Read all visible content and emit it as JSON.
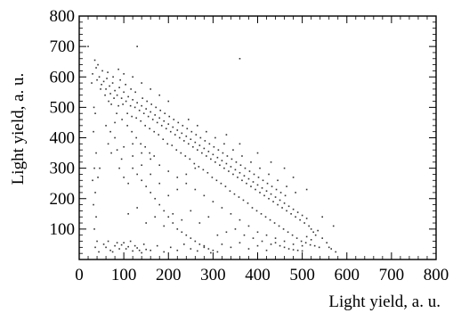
{
  "chart_data": {
    "type": "scatter",
    "title": "",
    "xlabel": "Light yield, a. u.",
    "ylabel": "Light yield, a. u.",
    "xlim": [
      0,
      800
    ],
    "ylim": [
      0,
      800
    ],
    "xticks": [
      0,
      100,
      200,
      300,
      400,
      500,
      600,
      700,
      800
    ],
    "yticks": [
      100,
      200,
      300,
      400,
      500,
      600,
      700,
      800
    ],
    "x_minor_step": 20,
    "y_minor_step": 20,
    "grid": false,
    "marker_color": "#333333",
    "points": [
      [
        40,
        590
      ],
      [
        45,
        600
      ],
      [
        50,
        575
      ],
      [
        55,
        585
      ],
      [
        60,
        560
      ],
      [
        62,
        595
      ],
      [
        68,
        570
      ],
      [
        70,
        545
      ],
      [
        75,
        580
      ],
      [
        80,
        555
      ],
      [
        85,
        540
      ],
      [
        90,
        565
      ],
      [
        95,
        530
      ],
      [
        100,
        550
      ],
      [
        105,
        520
      ],
      [
        110,
        535
      ],
      [
        115,
        505
      ],
      [
        120,
        525
      ],
      [
        125,
        500
      ],
      [
        130,
        515
      ],
      [
        135,
        490
      ],
      [
        140,
        505
      ],
      [
        145,
        480
      ],
      [
        150,
        495
      ],
      [
        155,
        470
      ],
      [
        160,
        485
      ],
      [
        165,
        460
      ],
      [
        170,
        475
      ],
      [
        175,
        450
      ],
      [
        180,
        465
      ],
      [
        185,
        440
      ],
      [
        190,
        455
      ],
      [
        195,
        430
      ],
      [
        200,
        445
      ],
      [
        205,
        420
      ],
      [
        210,
        435
      ],
      [
        215,
        410
      ],
      [
        220,
        425
      ],
      [
        225,
        400
      ],
      [
        230,
        415
      ],
      [
        235,
        390
      ],
      [
        240,
        405
      ],
      [
        245,
        380
      ],
      [
        250,
        395
      ],
      [
        255,
        370
      ],
      [
        260,
        385
      ],
      [
        265,
        360
      ],
      [
        270,
        375
      ],
      [
        275,
        350
      ],
      [
        280,
        365
      ],
      [
        285,
        340
      ],
      [
        290,
        355
      ],
      [
        295,
        330
      ],
      [
        300,
        345
      ],
      [
        305,
        320
      ],
      [
        310,
        335
      ],
      [
        315,
        310
      ],
      [
        320,
        325
      ],
      [
        325,
        300
      ],
      [
        330,
        315
      ],
      [
        335,
        290
      ],
      [
        340,
        305
      ],
      [
        345,
        280
      ],
      [
        350,
        295
      ],
      [
        355,
        270
      ],
      [
        360,
        285
      ],
      [
        365,
        260
      ],
      [
        370,
        275
      ],
      [
        375,
        250
      ],
      [
        380,
        265
      ],
      [
        385,
        240
      ],
      [
        390,
        255
      ],
      [
        395,
        230
      ],
      [
        400,
        245
      ],
      [
        405,
        220
      ],
      [
        410,
        235
      ],
      [
        415,
        210
      ],
      [
        420,
        225
      ],
      [
        425,
        200
      ],
      [
        430,
        215
      ],
      [
        435,
        190
      ],
      [
        440,
        205
      ],
      [
        445,
        180
      ],
      [
        450,
        195
      ],
      [
        455,
        170
      ],
      [
        460,
        185
      ],
      [
        465,
        160
      ],
      [
        470,
        175
      ],
      [
        475,
        150
      ],
      [
        480,
        165
      ],
      [
        485,
        140
      ],
      [
        490,
        155
      ],
      [
        495,
        130
      ],
      [
        500,
        145
      ],
      [
        505,
        120
      ],
      [
        510,
        135
      ],
      [
        515,
        110
      ],
      [
        520,
        100
      ],
      [
        525,
        90
      ],
      [
        530,
        80
      ],
      [
        48,
        560
      ],
      [
        58,
        540
      ],
      [
        66,
        520
      ],
      [
        78,
        530
      ],
      [
        88,
        505
      ],
      [
        98,
        510
      ],
      [
        108,
        480
      ],
      [
        118,
        470
      ],
      [
        128,
        465
      ],
      [
        138,
        455
      ],
      [
        148,
        440
      ],
      [
        158,
        430
      ],
      [
        168,
        420
      ],
      [
        178,
        410
      ],
      [
        188,
        395
      ],
      [
        198,
        380
      ],
      [
        208,
        375
      ],
      [
        218,
        360
      ],
      [
        228,
        350
      ],
      [
        238,
        340
      ],
      [
        248,
        330
      ],
      [
        258,
        315
      ],
      [
        268,
        305
      ],
      [
        278,
        295
      ],
      [
        288,
        285
      ],
      [
        298,
        270
      ],
      [
        308,
        260
      ],
      [
        318,
        250
      ],
      [
        328,
        240
      ],
      [
        338,
        225
      ],
      [
        348,
        215
      ],
      [
        358,
        205
      ],
      [
        368,
        195
      ],
      [
        378,
        185
      ],
      [
        388,
        170
      ],
      [
        398,
        160
      ],
      [
        408,
        150
      ],
      [
        418,
        140
      ],
      [
        428,
        130
      ],
      [
        438,
        120
      ],
      [
        448,
        110
      ],
      [
        458,
        100
      ],
      [
        468,
        90
      ],
      [
        478,
        80
      ],
      [
        488,
        70
      ],
      [
        498,
        60
      ],
      [
        508,
        55
      ],
      [
        518,
        48
      ],
      [
        528,
        45
      ],
      [
        538,
        40
      ],
      [
        52,
        620
      ],
      [
        64,
        615
      ],
      [
        76,
        600
      ],
      [
        92,
        590
      ],
      [
        104,
        575
      ],
      [
        116,
        560
      ],
      [
        126,
        550
      ],
      [
        142,
        530
      ],
      [
        152,
        520
      ],
      [
        162,
        510
      ],
      [
        172,
        500
      ],
      [
        182,
        490
      ],
      [
        192,
        480
      ],
      [
        202,
        470
      ],
      [
        212,
        460
      ],
      [
        222,
        450
      ],
      [
        232,
        440
      ],
      [
        242,
        430
      ],
      [
        252,
        420
      ],
      [
        262,
        410
      ],
      [
        272,
        400
      ],
      [
        282,
        390
      ],
      [
        292,
        380
      ],
      [
        302,
        370
      ],
      [
        312,
        360
      ],
      [
        322,
        350
      ],
      [
        332,
        340
      ],
      [
        342,
        330
      ],
      [
        352,
        320
      ],
      [
        362,
        310
      ],
      [
        372,
        300
      ],
      [
        382,
        290
      ],
      [
        392,
        280
      ],
      [
        402,
        270
      ],
      [
        412,
        260
      ],
      [
        422,
        250
      ],
      [
        432,
        240
      ],
      [
        442,
        230
      ],
      [
        452,
        220
      ],
      [
        462,
        210
      ],
      [
        38,
        630
      ],
      [
        42,
        640
      ],
      [
        35,
        655
      ],
      [
        30,
        610
      ],
      [
        28,
        580
      ],
      [
        33,
        500
      ],
      [
        36,
        480
      ],
      [
        32,
        420
      ],
      [
        38,
        350
      ],
      [
        34,
        300
      ],
      [
        30,
        260
      ],
      [
        36,
        220
      ],
      [
        32,
        180
      ],
      [
        38,
        140
      ],
      [
        34,
        100
      ],
      [
        40,
        60
      ],
      [
        36,
        40
      ],
      [
        44,
        25
      ],
      [
        42,
        270
      ],
      [
        46,
        300
      ],
      [
        60,
        440
      ],
      [
        70,
        420
      ],
      [
        65,
        380
      ],
      [
        72,
        350
      ],
      [
        80,
        400
      ],
      [
        85,
        360
      ],
      [
        95,
        330
      ],
      [
        90,
        300
      ],
      [
        100,
        270
      ],
      [
        110,
        250
      ],
      [
        120,
        300
      ],
      [
        130,
        280
      ],
      [
        140,
        260
      ],
      [
        150,
        240
      ],
      [
        160,
        220
      ],
      [
        170,
        200
      ],
      [
        180,
        180
      ],
      [
        190,
        160
      ],
      [
        200,
        140
      ],
      [
        210,
        120
      ],
      [
        220,
        100
      ],
      [
        230,
        90
      ],
      [
        240,
        80
      ],
      [
        250,
        70
      ],
      [
        260,
        60
      ],
      [
        270,
        50
      ],
      [
        280,
        40
      ],
      [
        290,
        35
      ],
      [
        300,
        30
      ],
      [
        310,
        25
      ],
      [
        60,
        40
      ],
      [
        70,
        30
      ],
      [
        80,
        45
      ],
      [
        90,
        35
      ],
      [
        100,
        55
      ],
      [
        110,
        42
      ],
      [
        120,
        28
      ],
      [
        130,
        38
      ],
      [
        140,
        22
      ],
      [
        150,
        33
      ],
      [
        55,
        50
      ],
      [
        65,
        60
      ],
      [
        75,
        25
      ],
      [
        85,
        55
      ],
      [
        95,
        48
      ],
      [
        105,
        35
      ],
      [
        115,
        60
      ],
      [
        125,
        45
      ],
      [
        135,
        30
      ],
      [
        145,
        50
      ],
      [
        160,
        30
      ],
      [
        175,
        45
      ],
      [
        190,
        25
      ],
      [
        205,
        40
      ],
      [
        220,
        30
      ],
      [
        235,
        50
      ],
      [
        250,
        35
      ],
      [
        265,
        28
      ],
      [
        280,
        45
      ],
      [
        295,
        22
      ],
      [
        320,
        50
      ],
      [
        340,
        40
      ],
      [
        360,
        55
      ],
      [
        380,
        35
      ],
      [
        400,
        45
      ],
      [
        420,
        30
      ],
      [
        440,
        55
      ],
      [
        460,
        40
      ],
      [
        480,
        32
      ],
      [
        500,
        28
      ],
      [
        110,
        150
      ],
      [
        130,
        170
      ],
      [
        150,
        120
      ],
      [
        170,
        140
      ],
      [
        190,
        110
      ],
      [
        210,
        150
      ],
      [
        230,
        130
      ],
      [
        250,
        160
      ],
      [
        270,
        120
      ],
      [
        290,
        140
      ],
      [
        120,
        380
      ],
      [
        140,
        350
      ],
      [
        160,
        330
      ],
      [
        180,
        310
      ],
      [
        200,
        290
      ],
      [
        220,
        270
      ],
      [
        240,
        250
      ],
      [
        260,
        230
      ],
      [
        280,
        210
      ],
      [
        300,
        190
      ],
      [
        320,
        170
      ],
      [
        340,
        150
      ],
      [
        360,
        130
      ],
      [
        380,
        110
      ],
      [
        400,
        90
      ],
      [
        420,
        80
      ],
      [
        440,
        70
      ],
      [
        460,
        60
      ],
      [
        480,
        50
      ],
      [
        500,
        45
      ],
      [
        245,
        460
      ],
      [
        265,
        440
      ],
      [
        285,
        420
      ],
      [
        305,
        400
      ],
      [
        325,
        380
      ],
      [
        345,
        360
      ],
      [
        365,
        340
      ],
      [
        385,
        320
      ],
      [
        405,
        300
      ],
      [
        425,
        280
      ],
      [
        445,
        260
      ],
      [
        465,
        240
      ],
      [
        485,
        220
      ],
      [
        200,
        520
      ],
      [
        180,
        540
      ],
      [
        160,
        560
      ],
      [
        140,
        580
      ],
      [
        120,
        600
      ],
      [
        100,
        610
      ],
      [
        88,
        625
      ],
      [
        560,
        40
      ],
      [
        570,
        110
      ],
      [
        545,
        140
      ],
      [
        510,
        230
      ],
      [
        480,
        270
      ],
      [
        460,
        300
      ],
      [
        430,
        320
      ],
      [
        400,
        350
      ],
      [
        360,
        380
      ],
      [
        330,
        410
      ],
      [
        130,
        700
      ],
      [
        360,
        660
      ],
      [
        20,
        700
      ],
      [
        535,
        95
      ],
      [
        545,
        70
      ],
      [
        555,
        55
      ],
      [
        565,
        35
      ],
      [
        575,
        25
      ],
      [
        520,
        65
      ],
      [
        510,
        75
      ],
      [
        350,
        100
      ],
      [
        330,
        90
      ],
      [
        310,
        80
      ],
      [
        370,
        80
      ],
      [
        390,
        70
      ],
      [
        410,
        60
      ],
      [
        430,
        50
      ],
      [
        450,
        45
      ],
      [
        470,
        35
      ],
      [
        490,
        30
      ],
      [
        260,
        300
      ],
      [
        240,
        280
      ],
      [
        220,
        230
      ],
      [
        200,
        210
      ],
      [
        180,
        250
      ],
      [
        160,
        280
      ],
      [
        140,
        310
      ],
      [
        120,
        340
      ],
      [
        100,
        370
      ],
      [
        80,
        450
      ],
      [
        72,
        510
      ],
      [
        84,
        480
      ],
      [
        96,
        460
      ],
      [
        108,
        440
      ],
      [
        118,
        420
      ],
      [
        128,
        400
      ],
      [
        138,
        380
      ],
      [
        148,
        370
      ],
      [
        158,
        350
      ],
      [
        168,
        340
      ]
    ]
  }
}
